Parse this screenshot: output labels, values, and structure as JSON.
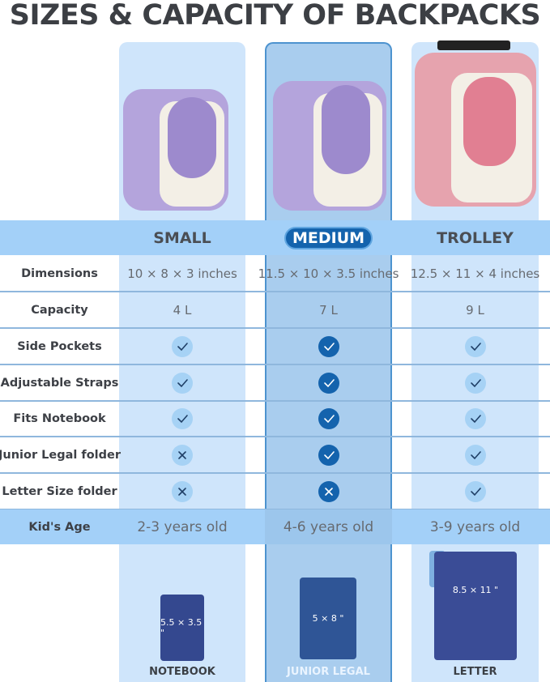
{
  "title": "SIZES & CAPACITY OF BACKPACKS",
  "columns": [
    {
      "name": "SMALL",
      "dimensions": "10 × 8 × 3 inches",
      "capacity": "4 L",
      "age": "2-3 years old",
      "features": [
        "check",
        "check",
        "check",
        "cross",
        "cross"
      ],
      "item_size": "5.5 × 3.5 \"",
      "item_label": "NOTEBOOK",
      "color": "#b7a6dc"
    },
    {
      "name": "MEDIUM",
      "dimensions": "11.5 × 10 × 3.5 inches",
      "capacity": "7 L",
      "age": "4-6 years old",
      "features": [
        "check",
        "check",
        "check",
        "check",
        "cross"
      ],
      "item_size": "5 × 8 \"",
      "item_label": "JUNIOR LEGAL",
      "color": "#b7a6dc"
    },
    {
      "name": "TROLLEY",
      "dimensions": "12.5 × 11 × 4 inches",
      "capacity": "9 L",
      "age": "3-9 years old",
      "features": [
        "check",
        "check",
        "check",
        "check",
        "check"
      ],
      "item_size": "8.5 × 11 \"",
      "item_label": "LETTER",
      "color": "#e38e9e"
    }
  ],
  "row_labels": {
    "dimensions": "Dimensions",
    "capacity": "Capacity",
    "age": "Kid's Age",
    "features": [
      "Side Pockets",
      "Adjustable Straps",
      "Fits Notebook",
      "Junior Legal folder",
      "Letter Size folder"
    ]
  },
  "colors": {
    "highlight": "#1463ad",
    "band": "#a3d0f8",
    "column": "#cfe5fb"
  }
}
